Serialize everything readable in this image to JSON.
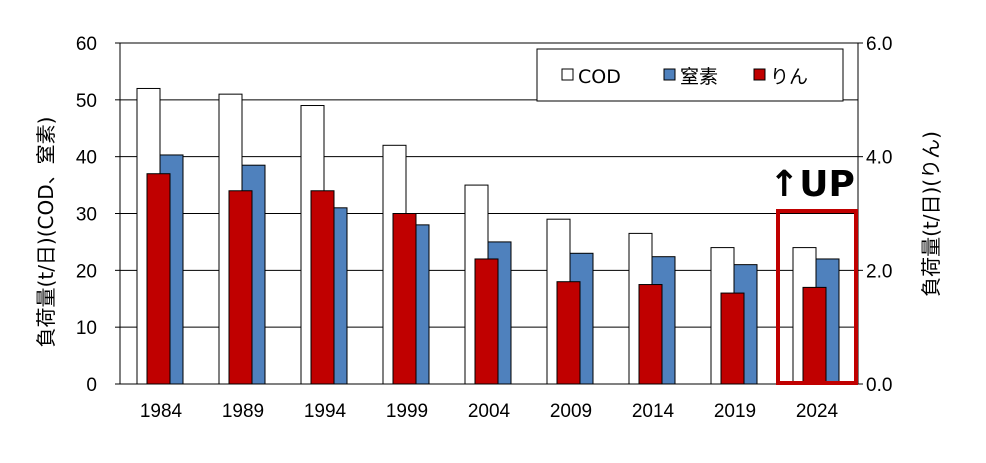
{
  "chart_data": {
    "type": "bar",
    "categories": [
      "1984",
      "1989",
      "1994",
      "1999",
      "2004",
      "2009",
      "2014",
      "2019",
      "2024"
    ],
    "series": [
      {
        "name": "COD",
        "axis": "left",
        "color": "#ffffff",
        "values": [
          52,
          51,
          49,
          42,
          35,
          29,
          26.5,
          24,
          24
        ]
      },
      {
        "name": "窒素",
        "axis": "left",
        "color": "#4f81bd",
        "values": [
          40.3,
          38.5,
          31,
          28,
          25,
          23,
          22.4,
          21,
          22
        ]
      },
      {
        "name": "りん",
        "axis": "right",
        "color": "#c00000",
        "values": [
          3.7,
          3.4,
          3.4,
          3.0,
          2.2,
          1.8,
          1.75,
          1.6,
          1.7
        ]
      }
    ],
    "ylabel": "負荷量(t/日)(COD、窒素)",
    "ylabel_right": "負荷量(t/日)(りん)",
    "ylim": [
      0,
      60
    ],
    "ylim_right": [
      0,
      6
    ],
    "yticks": [
      "0",
      "10",
      "20",
      "30",
      "40",
      "50",
      "60"
    ],
    "yticks_right": [
      "0.0",
      "2.0",
      "4.0",
      "6.0"
    ],
    "grid": true,
    "legend_position": "top-right",
    "annotation": {
      "text": "↑UP",
      "category": "2024",
      "highlight_color": "#c00000"
    }
  }
}
